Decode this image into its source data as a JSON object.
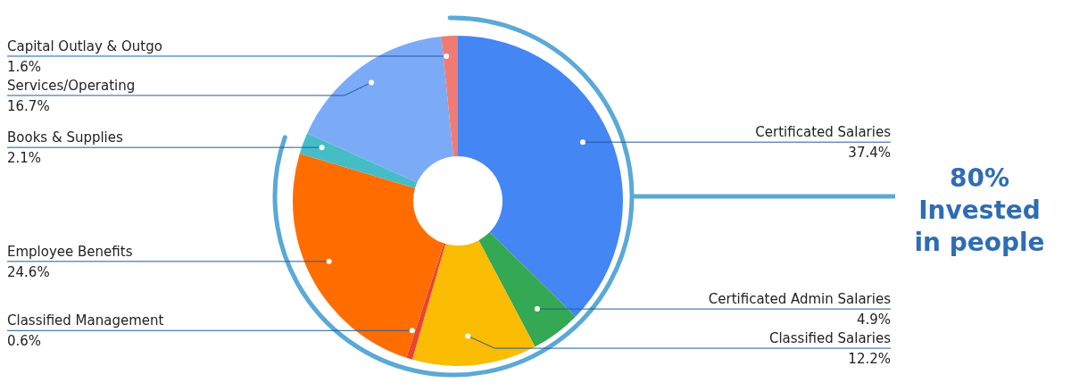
{
  "chart_data": {
    "type": "donut",
    "categories": [
      "Certificated Salaries",
      "Certificated Admin Salaries",
      "Classified Salaries",
      "Classified Management",
      "Employee Benefits",
      "Books & Supplies",
      "Services/Operating",
      "Capital Outlay & Outgo"
    ],
    "values": [
      37.4,
      4.9,
      12.2,
      0.6,
      24.6,
      2.1,
      16.7,
      1.6
    ],
    "colors": [
      "#4486f4",
      "#34a853",
      "#fbbc04",
      "#ea4335",
      "#ff6d01",
      "#46bdc6",
      "#7baaf7",
      "#f07b72"
    ],
    "value_labels": [
      "37.4%",
      "4.9%",
      "12.2%",
      "0.6%",
      "24.6%",
      "2.1%",
      "16.7%",
      "1.6%"
    ],
    "annotations": [
      "80% Invested in people"
    ]
  }
}
